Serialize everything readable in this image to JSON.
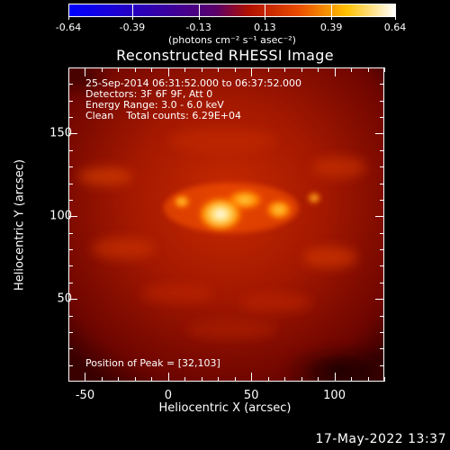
{
  "colorbar": {
    "ticks": [
      "-0.64",
      "-0.39",
      "-0.13",
      "0.13",
      "0.39",
      "0.64"
    ],
    "units": "(photons cm⁻² s⁻¹ asec⁻²)"
  },
  "chart_data": {
    "type": "heatmap",
    "title": "Reconstructed RHESSI Image",
    "xlabel": "Heliocentric X (arcsec)",
    "ylabel": "Heliocentric Y (arcsec)",
    "xlim": [
      -60,
      130
    ],
    "ylim": [
      0,
      190
    ],
    "x_ticks": [
      "-50",
      "0",
      "50",
      "100"
    ],
    "y_ticks": [
      "50",
      "100",
      "150"
    ],
    "colorscale_range": [
      -0.64,
      0.64
    ],
    "peak": [
      32,
      103
    ],
    "colors": {
      "background": "#000000",
      "low": "#000000",
      "high": "#ffffff"
    }
  },
  "info": {
    "line1": "25-Sep-2014 06:31:52.000 to 06:37:52.000",
    "line2": "Detectors: 3F 6F 9F, Att 0",
    "line3": "Energy Range: 3.0 - 6.0 keV",
    "line4": "Clean    Total counts: 6.29E+04",
    "peak_text": "Position of Peak = [32,103]"
  },
  "footer": {
    "timestamp": "17-May-2022 13:37"
  }
}
